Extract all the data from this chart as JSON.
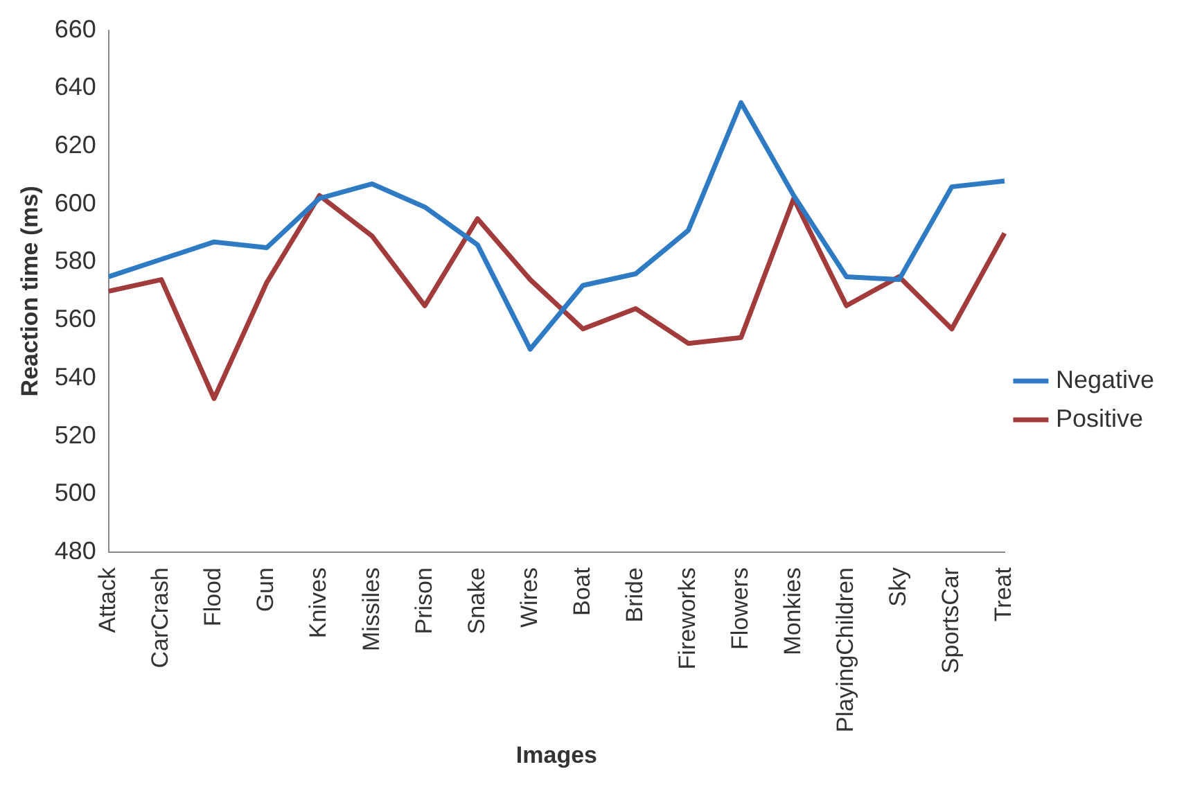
{
  "chart_data": {
    "type": "line",
    "xlabel": "Images",
    "ylabel": "Reaction time (ms)",
    "categories": [
      "Attack",
      "CarCrash",
      "Flood",
      "Gun",
      "Knives",
      "Missiles",
      "Prison",
      "Snake",
      "Wires",
      "Boat",
      "Bride",
      "Fireworks",
      "Flowers",
      "Monkies",
      "PlayingChildren",
      "Sky",
      "SportsCar",
      "Treat"
    ],
    "series": [
      {
        "name": "Negative",
        "color": "#2e7bc4",
        "values": [
          575,
          581,
          587,
          585,
          602,
          607,
          599,
          586,
          550,
          572,
          576,
          591,
          635,
          603,
          575,
          574,
          606,
          608
        ]
      },
      {
        "name": "Positive",
        "color": "#a23b3b",
        "values": [
          570,
          574,
          533,
          573,
          603,
          589,
          565,
          595,
          574,
          557,
          564,
          552,
          554,
          602,
          565,
          575,
          557,
          590
        ]
      }
    ],
    "ylim": [
      480,
      660
    ],
    "yticks": [
      480,
      500,
      520,
      540,
      560,
      580,
      600,
      620,
      640,
      660
    ],
    "grid": false,
    "legend": "right",
    "marker": "none",
    "line_style": "solid"
  }
}
